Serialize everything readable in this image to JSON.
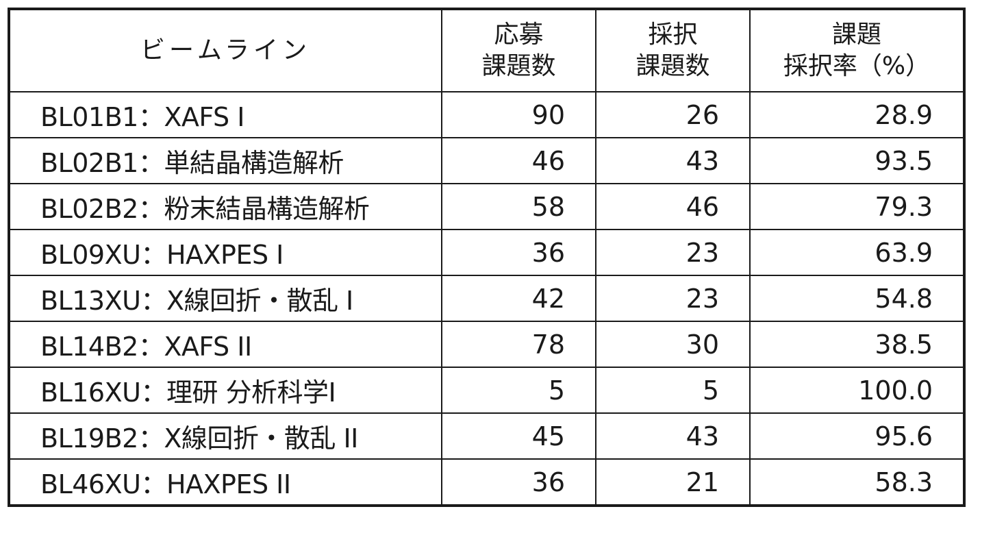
{
  "table": {
    "headers": {
      "beamline": "ビームライン",
      "applications": [
        "応募",
        "課題数"
      ],
      "accepted": [
        "採択",
        "課題数"
      ],
      "rate": [
        "課題",
        "採択率（%）"
      ]
    },
    "rows": [
      {
        "beamline": "BL01B1：XAFS I",
        "applications": "90",
        "accepted": "26",
        "rate": "28.9"
      },
      {
        "beamline": "BL02B1：単結晶構造解析",
        "applications": "46",
        "accepted": "43",
        "rate": "93.5"
      },
      {
        "beamline": "BL02B2：粉末結晶構造解析",
        "applications": "58",
        "accepted": "46",
        "rate": "79.3"
      },
      {
        "beamline": "BL09XU：HAXPES I",
        "applications": "36",
        "accepted": "23",
        "rate": "63.9"
      },
      {
        "beamline": "BL13XU：X線回折・散乱 I",
        "applications": "42",
        "accepted": "23",
        "rate": "54.8"
      },
      {
        "beamline": "BL14B2：XAFS II",
        "applications": "78",
        "accepted": "30",
        "rate": "38.5"
      },
      {
        "beamline": "BL16XU：理研 分析科学I",
        "applications": "5",
        "accepted": "5",
        "rate": "100.0"
      },
      {
        "beamline": "BL19B2：X線回折・散乱 II",
        "applications": "45",
        "accepted": "43",
        "rate": "95.6"
      },
      {
        "beamline": "BL46XU：HAXPES II",
        "applications": "36",
        "accepted": "21",
        "rate": "58.3"
      }
    ]
  }
}
